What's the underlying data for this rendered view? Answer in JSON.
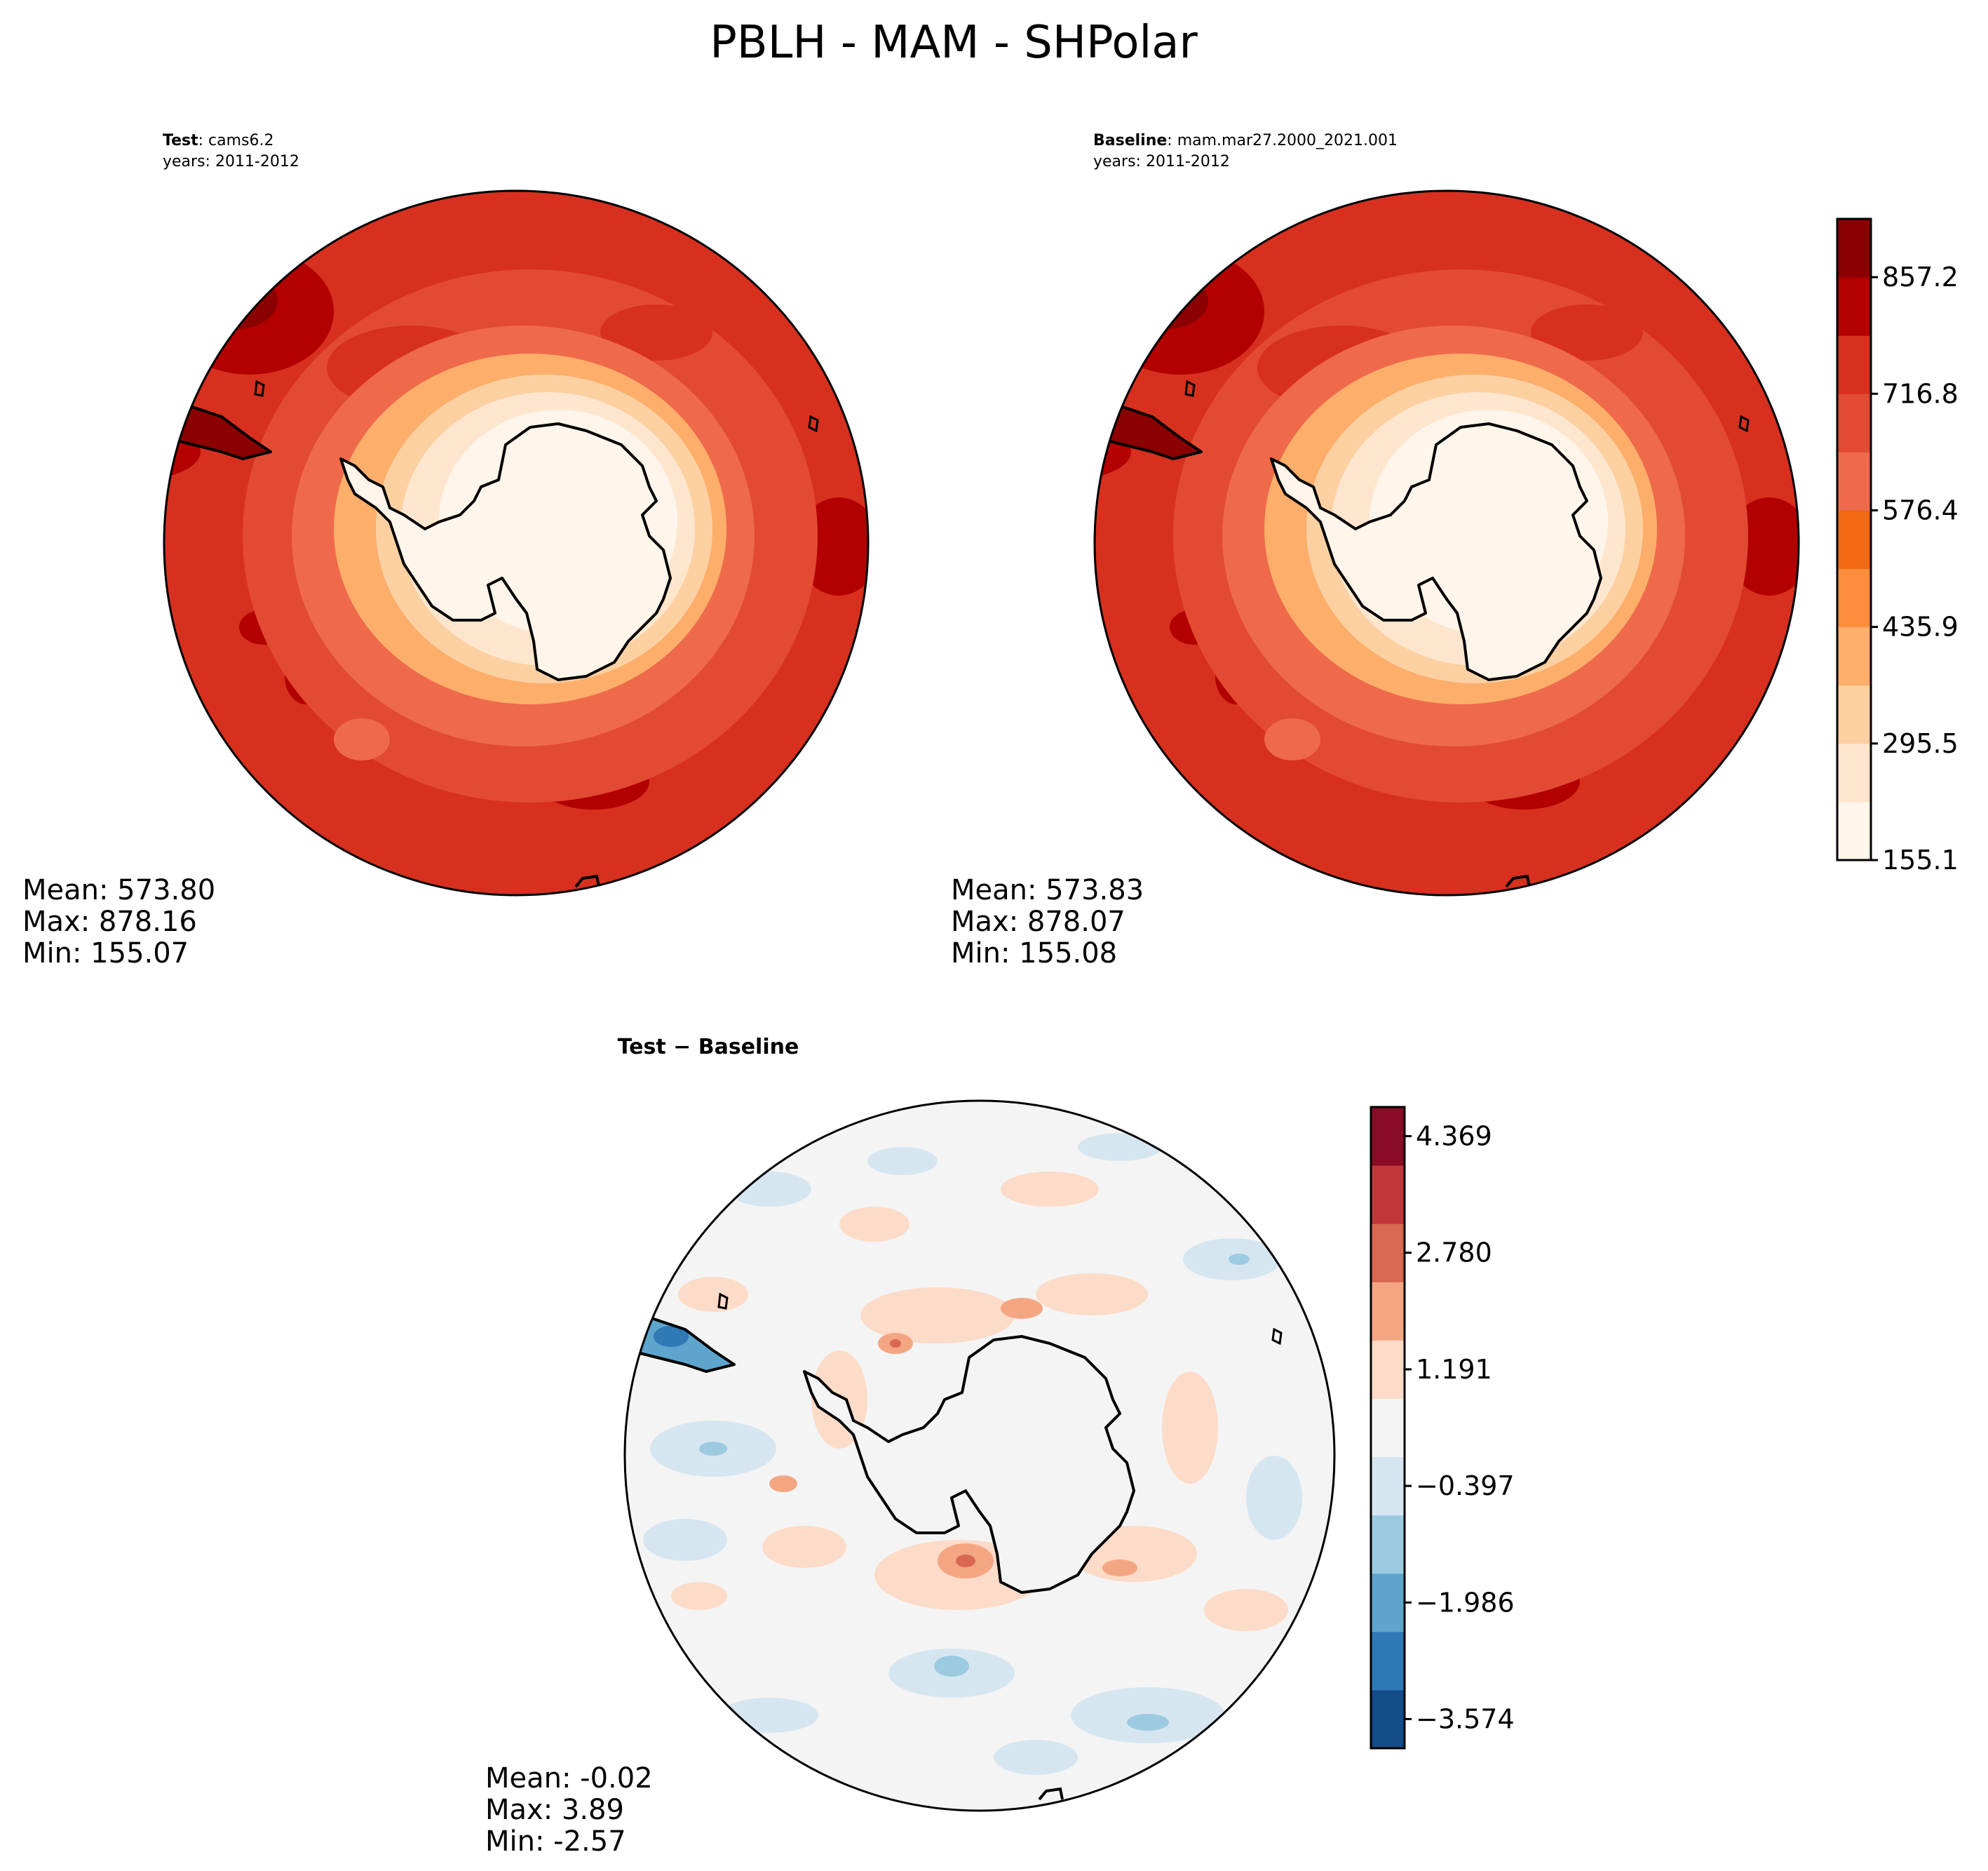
{
  "figure": {
    "title": "PBLH - MAM - SHPolar"
  },
  "panels": {
    "test": {
      "label_bold": "Test",
      "label_rest": ": cams6.2",
      "years": "years: 2011-2012",
      "stats": {
        "mean": "Mean: 573.80",
        "max": "Max: 878.16",
        "min": "Min: 155.07"
      }
    },
    "baseline": {
      "label_bold": "Baseline",
      "label_rest": ": mam.mar27.2000_2021.001",
      "years": "years: 2011-2012",
      "stats": {
        "mean": "Mean: 573.83",
        "max": "Max: 878.07",
        "min": "Min: 155.08"
      }
    },
    "diff": {
      "title": "Test − Baseline",
      "stats": {
        "mean": "Mean: -0.02",
        "max": "Max:  3.89",
        "min": "Min: -2.57"
      }
    }
  },
  "colorbars": {
    "main": {
      "ticks": [
        "155.1",
        "295.5",
        "435.9",
        "576.4",
        "716.8",
        "857.2"
      ],
      "colors": [
        "#fff5eb",
        "#fee6ce",
        "#fdd0a2",
        "#fdae6b",
        "#fd8d3c",
        "#f16913",
        "#ee6a4a",
        "#e34a33",
        "#d7301f",
        "#b30000",
        "#8b0000"
      ]
    },
    "diff": {
      "ticks": [
        "−3.574",
        "−1.986",
        "−0.397",
        "1.191",
        "2.780",
        "4.369"
      ],
      "colors": [
        "#134b87",
        "#2f79b5",
        "#5ea5ce",
        "#9ccae1",
        "#d6e6f1",
        "#f4f4f4",
        "#fcdbc8",
        "#f4a683",
        "#d86852",
        "#c13639",
        "#8a0b25"
      ]
    }
  },
  "chart_data": {
    "type": "contour-map",
    "variable": "PBLH",
    "season": "MAM",
    "region": "SHPolar",
    "test": {
      "name": "cams6.2",
      "years": "2011-2012",
      "mean": 573.8,
      "max": 878.16,
      "min": 155.07
    },
    "baseline": {
      "name": "mam.mar27.2000_2021.001",
      "years": "2011-2012",
      "mean": 573.83,
      "max": 878.07,
      "min": 155.08
    },
    "difference": {
      "mean": -0.02,
      "max": 3.89,
      "min": -2.57
    },
    "main_levels": [
      155.1,
      295.5,
      435.9,
      576.4,
      716.8,
      857.2
    ],
    "diff_levels": [
      -3.574,
      -1.986,
      -0.397,
      1.191,
      2.78,
      4.369
    ]
  }
}
